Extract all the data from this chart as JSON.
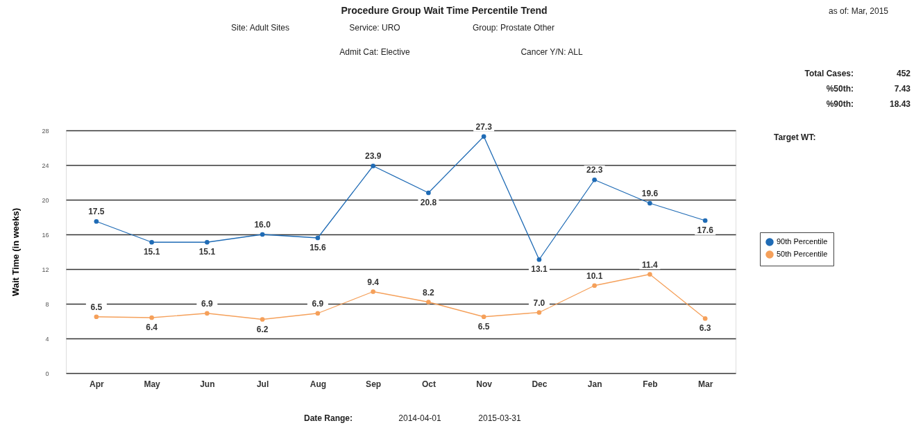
{
  "chart_data": {
    "type": "line",
    "title": "Procedure Group Wait Time Percentile Trend",
    "ylabel": "Wait Time (in weeks)",
    "categories": [
      "Apr",
      "May",
      "Jun",
      "Jul",
      "Aug",
      "Sep",
      "Oct",
      "Nov",
      "Dec",
      "Jan",
      "Feb",
      "Mar"
    ],
    "series": [
      {
        "name": "90th Percentile",
        "color": "#1f6bb5",
        "values": [
          17.5,
          15.1,
          15.1,
          16.0,
          15.6,
          23.9,
          20.8,
          27.3,
          13.1,
          22.3,
          19.6,
          17.6
        ],
        "value_labels": [
          "17.5",
          "15.1",
          "15.1",
          "16.0",
          "15.6",
          "23.9",
          "20.8",
          "27.3",
          "13.1",
          "22.3",
          "19.6",
          "17.6"
        ]
      },
      {
        "name": "50th Percentile",
        "color": "#f5a05a",
        "values": [
          6.5,
          6.4,
          6.9,
          6.2,
          6.9,
          9.4,
          8.2,
          6.5,
          7.0,
          10.1,
          11.4,
          6.3
        ],
        "value_labels": [
          "6.5",
          "6.4",
          "6.9",
          "6.2",
          "6.9",
          "9.4",
          "8.2",
          "6.5",
          "7.0",
          "10.1",
          "11.4",
          "6.3"
        ]
      }
    ],
    "ylim": [
      0,
      28
    ],
    "yticks": [
      0,
      4,
      8,
      12,
      16,
      20,
      24,
      28
    ],
    "grid": "y",
    "legend": "right",
    "marker": "circle",
    "line_style": "solid",
    "annotations": [
      "Site: Adult Sites",
      "Service: URO",
      "Group: Prostate Other",
      "Admit Cat: Elective",
      "Cancer Y/N: ALL",
      "as of: Mar, 2015",
      "Total Cases:",
      "452",
      "%50th:",
      "7.43",
      "%90th:",
      "18.43",
      "Target WT:",
      "Date Range:",
      "2014-04-01",
      "2015-03-31"
    ]
  }
}
